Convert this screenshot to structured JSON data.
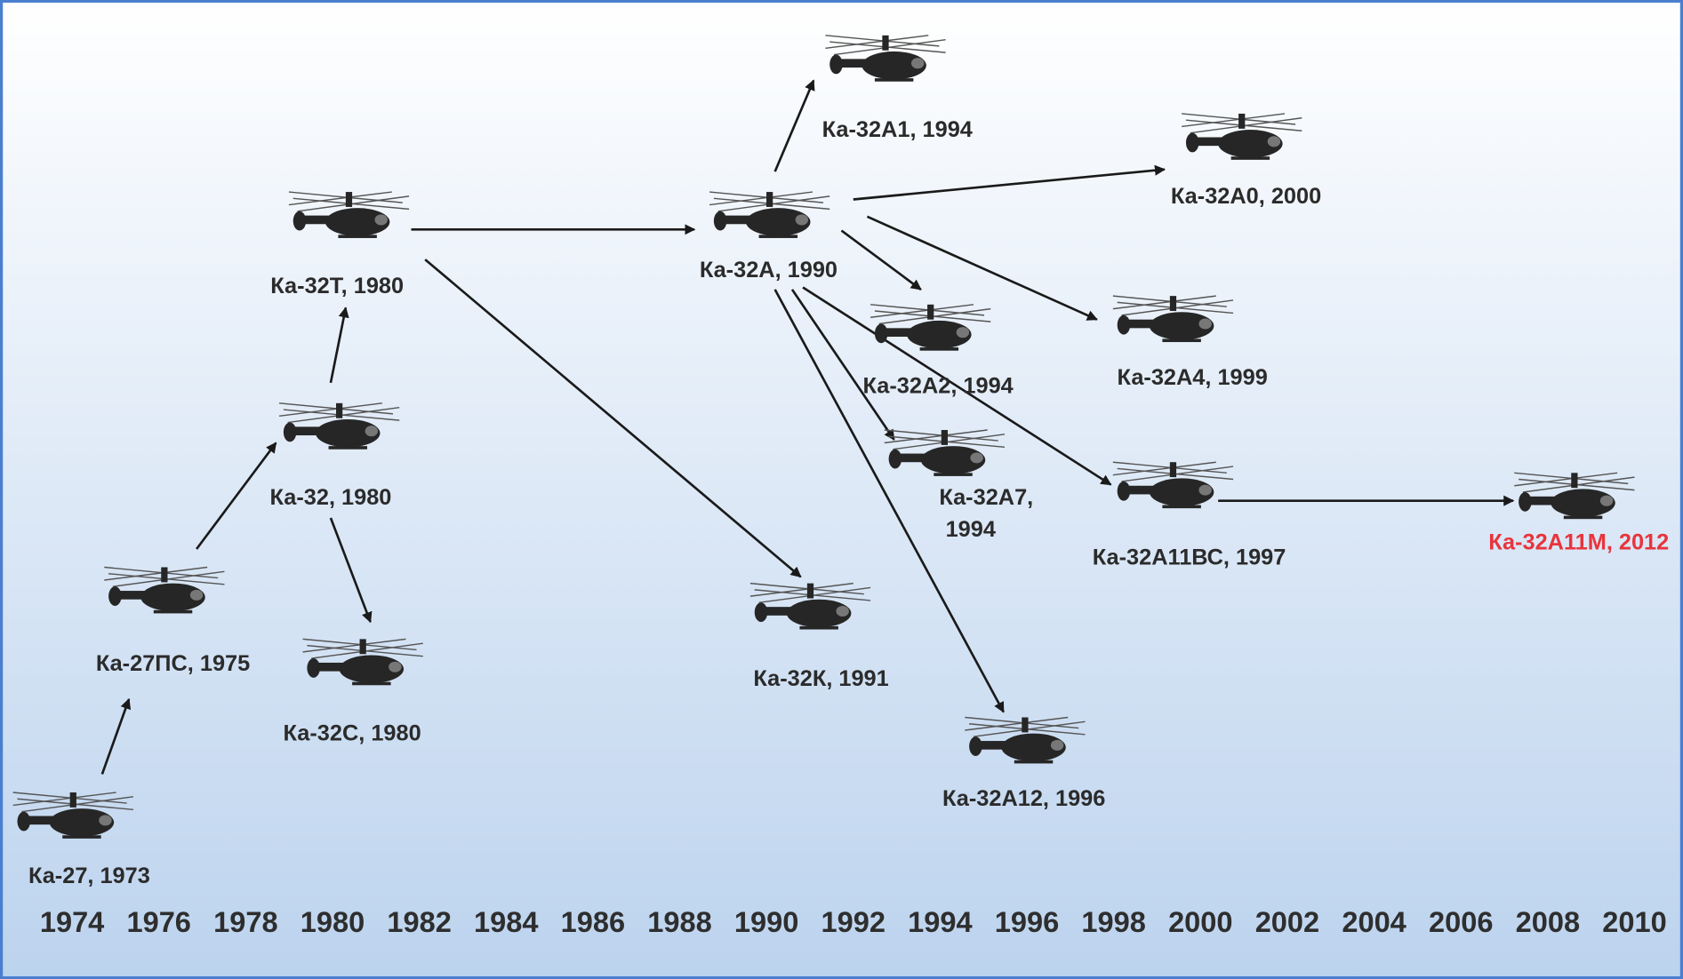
{
  "nodes": [
    {
      "lines": [
        "Ка-27, 1973"
      ]
    },
    {
      "lines": [
        "Ка-27ПС, 1975"
      ]
    },
    {
      "lines": [
        "Ка-32, 1980"
      ]
    },
    {
      "lines": [
        "Ка-32С, 1980"
      ]
    },
    {
      "lines": [
        "Ка-32Т, 1980"
      ]
    },
    {
      "lines": [
        "Ка-32А, 1990"
      ]
    },
    {
      "lines": [
        "Ка-32К, 1991"
      ]
    },
    {
      "lines": [
        "Ка-32А1, 1994"
      ]
    },
    {
      "lines": [
        "Ка-32А0, 2000"
      ]
    },
    {
      "lines": [
        "Ка-32А2, 1994"
      ]
    },
    {
      "lines": [
        "Ка-32А4, 1999"
      ]
    },
    {
      "lines": [
        "Ка-32А7,",
        "1994"
      ]
    },
    {
      "lines": [
        "Ка-32А11ВС, 1997"
      ]
    },
    {
      "lines": [
        "Ка-32А12, 1996"
      ]
    },
    {
      "lines": [
        "Ка-32А11М, 2012"
      ]
    }
  ],
  "timeline": {
    "years": [
      "1974",
      "1976",
      "1978",
      "1980",
      "1982",
      "1984",
      "1986",
      "1988",
      "1990",
      "1992",
      "1994",
      "1996",
      "1998",
      "2000",
      "2002",
      "2004",
      "2006",
      "2008",
      "2010"
    ]
  }
}
